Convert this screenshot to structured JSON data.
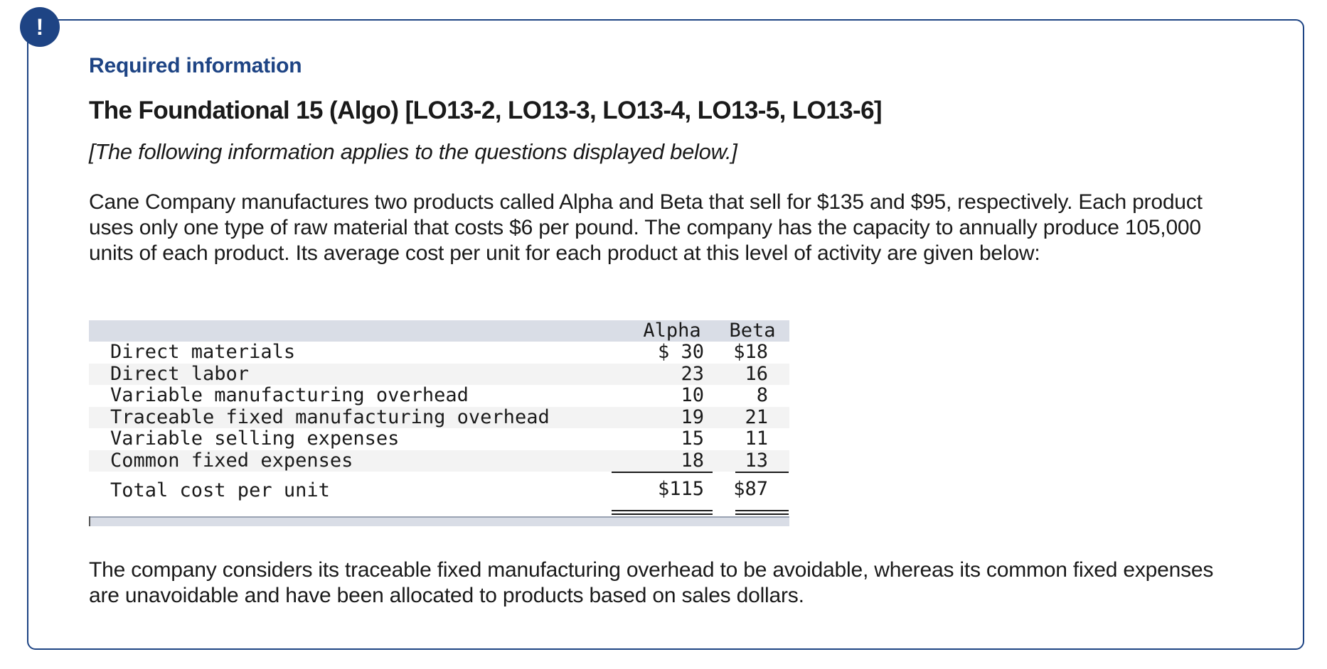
{
  "alert": {
    "icon": "exclamation-icon",
    "glyph": "!",
    "color": "#1e4484"
  },
  "header": {
    "required_label": "Required information",
    "title": "The Foundational 15 (Algo) [LO13-2, LO13-3, LO13-4, LO13-5, LO13-6]",
    "note": "[The following information applies to the questions displayed below.]"
  },
  "intro_text": "Cane Company manufactures two products called Alpha and Beta that sell for $135 and $95, respectively. Each product uses only one type of raw material that costs $6 per pound. The company has the capacity to annually produce 105,000 units of each product. Its average cost per unit for each product at this level of activity are given below:",
  "table": {
    "headers": {
      "alpha": "Alpha",
      "beta": "Beta"
    },
    "rows": [
      {
        "label": "Direct materials",
        "alpha": "$ 30",
        "beta": "$18"
      },
      {
        "label": "Direct labor",
        "alpha": "23",
        "beta": "16"
      },
      {
        "label": "Variable manufacturing overhead",
        "alpha": "10",
        "beta": "8"
      },
      {
        "label": "Traceable fixed manufacturing overhead",
        "alpha": "19",
        "beta": "21"
      },
      {
        "label": "Variable selling expenses",
        "alpha": "15",
        "beta": "11"
      },
      {
        "label": "Common fixed expenses",
        "alpha": "18",
        "beta": "13"
      }
    ],
    "total": {
      "label": "Total cost per unit",
      "alpha": "$115",
      "beta": "$87"
    }
  },
  "closing_text": "The company considers its traceable fixed manufacturing overhead to be avoidable, whereas its common fixed expenses are unavoidable and have been allocated to products based on sales dollars."
}
